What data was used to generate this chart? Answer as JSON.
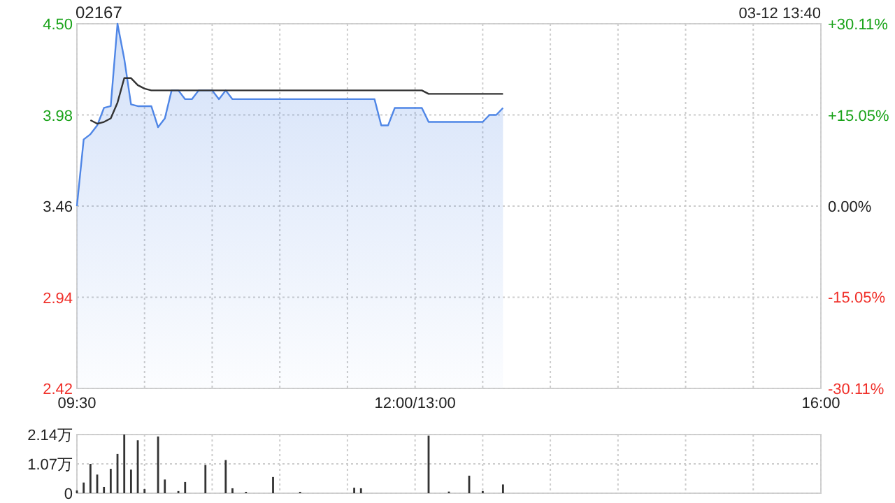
{
  "chart_data": [
    {
      "type": "line",
      "title": "02167",
      "annotations": [
        "03-12 13:40"
      ],
      "categories": [
        "09:30",
        null,
        null,
        null,
        null,
        null,
        null,
        null,
        null,
        null,
        null,
        null,
        null,
        null,
        null,
        null,
        null,
        null,
        null,
        null,
        null,
        null,
        null,
        null,
        null,
        null,
        null,
        null,
        null,
        null,
        null,
        null,
        null,
        null,
        null,
        null,
        null,
        null,
        null,
        null,
        null,
        null,
        null,
        null,
        null,
        null,
        null,
        null,
        null,
        null,
        "12:00/13:00",
        null,
        null,
        null,
        null,
        null,
        null,
        null,
        null,
        null,
        null,
        null,
        null,
        null,
        null,
        null,
        null,
        null,
        null,
        null,
        null,
        null,
        null,
        null,
        null,
        null,
        null,
        null,
        null,
        null,
        null,
        null,
        null,
        null,
        null,
        null,
        null,
        null,
        null,
        null,
        null,
        null,
        null,
        null,
        null,
        null,
        null,
        null,
        null,
        null,
        null,
        null,
        null,
        null,
        null,
        null,
        null,
        null,
        null,
        null,
        "16:00"
      ],
      "ylim": [
        2.42,
        4.5
      ],
      "yticks": [
        2.42,
        2.94,
        3.46,
        3.98,
        {
          "value": 4.5,
          "label": "4.50"
        }
      ],
      "y2lim": [
        -30.11,
        30.11
      ],
      "y2ticks": [
        {
          "value": -30.11,
          "label": "-30.11%"
        },
        {
          "value": -15.05,
          "label": "-15.05%"
        },
        {
          "value": 0,
          "label": "0.00%"
        },
        {
          "value": 15.05,
          "label": "+15.05%"
        },
        {
          "value": 30.11,
          "label": "+30.11%"
        }
      ],
      "grid": true,
      "series": [
        {
          "type": "area",
          "color": "#4f86e6",
          "values": [
            3.46,
            3.84,
            3.87,
            3.92,
            4.02,
            4.03,
            4.5,
            4.3,
            4.04,
            4.03,
            4.03,
            4.03,
            3.91,
            3.96,
            4.12,
            4.12,
            4.07,
            4.07,
            4.12,
            4.12,
            4.12,
            4.07,
            4.12,
            4.07,
            4.07,
            4.07,
            4.07,
            4.07,
            4.07,
            4.07,
            4.07,
            4.07,
            4.07,
            4.07,
            4.07,
            4.07,
            4.07,
            4.07,
            4.07,
            4.07,
            4.07,
            4.07,
            4.07,
            4.07,
            4.07,
            3.92,
            3.92,
            4.02,
            4.02,
            4.02,
            4.02,
            4.02,
            3.94,
            3.94,
            3.94,
            3.94,
            3.94,
            3.94,
            3.94,
            3.94,
            3.94,
            3.98,
            3.98,
            4.02,
            null,
            null,
            null,
            null,
            null,
            null,
            null,
            null,
            null,
            null,
            null,
            null,
            null,
            null,
            null,
            null,
            null,
            null,
            null,
            null,
            null,
            null,
            null,
            null,
            null,
            null,
            null,
            null,
            null,
            null,
            null,
            null,
            null,
            null,
            null,
            null,
            null,
            null,
            null,
            null,
            null,
            null,
            null,
            null,
            null,
            null,
            null
          ]
        },
        {
          "type": "line",
          "color": "#333333",
          "values": [
            null,
            null,
            3.95,
            3.93,
            3.94,
            3.96,
            4.05,
            4.19,
            4.19,
            4.15,
            4.13,
            4.12,
            4.12,
            4.12,
            4.12,
            4.12,
            4.12,
            4.12,
            4.12,
            4.12,
            4.12,
            4.12,
            4.12,
            4.12,
            4.12,
            4.12,
            4.12,
            4.12,
            4.12,
            4.12,
            4.12,
            4.12,
            4.12,
            4.12,
            4.12,
            4.12,
            4.12,
            4.12,
            4.12,
            4.12,
            4.12,
            4.12,
            4.12,
            4.12,
            4.12,
            4.12,
            4.12,
            4.12,
            4.12,
            4.12,
            4.12,
            4.12,
            4.1,
            4.1,
            4.1,
            4.1,
            4.1,
            4.1,
            4.1,
            4.1,
            4.1,
            4.1,
            4.1,
            4.1,
            null,
            null,
            null,
            null,
            null,
            null,
            null,
            null,
            null,
            null,
            null,
            null,
            null,
            null,
            null,
            null,
            null,
            null,
            null,
            null,
            null,
            null,
            null,
            null,
            null,
            null,
            null,
            null,
            null,
            null,
            null,
            null,
            null,
            null,
            null,
            null,
            null,
            null,
            null,
            null,
            null,
            null,
            null,
            null,
            null,
            null,
            null
          ]
        }
      ]
    },
    {
      "type": "bar",
      "categories": [
        null,
        null,
        null,
        null,
        null,
        null,
        null,
        null,
        null,
        null,
        null,
        null,
        null,
        null,
        null,
        null,
        null,
        null,
        null,
        null,
        null,
        null,
        null,
        null,
        null,
        null,
        null,
        null,
        null,
        null,
        null,
        null,
        null,
        null,
        null,
        null,
        null,
        null,
        null,
        null,
        null,
        null,
        null,
        null,
        null,
        null,
        null,
        null,
        null,
        null,
        null,
        null,
        null,
        null,
        null,
        null,
        null,
        null,
        null,
        null,
        null,
        null,
        null,
        null,
        null,
        null,
        null,
        null,
        null,
        null,
        null,
        null,
        null,
        null,
        null,
        null,
        null,
        null,
        null,
        null,
        null,
        null,
        null,
        null,
        null,
        null,
        null,
        null,
        null,
        null,
        null,
        null,
        null,
        null,
        null,
        null,
        null,
        null,
        null,
        null,
        null,
        null,
        null,
        null,
        null,
        null,
        null,
        null,
        null,
        null,
        null
      ],
      "ylim": [
        0,
        2.14
      ],
      "yticks": [
        {
          "value": 0,
          "label": "0"
        },
        {
          "value": 1.07,
          "label": "1.07万"
        },
        {
          "value": 2.14,
          "label": "2.14万"
        }
      ],
      "tick_labels": "y",
      "grid": true,
      "series": [
        {
          "color": "#333333",
          "values": [
            0.1,
            0.39,
            1.07,
            0.68,
            0.23,
            0.89,
            1.43,
            2.14,
            0.86,
            1.93,
            0.15,
            null,
            2.07,
            0.5,
            null,
            0.08,
            0.41,
            null,
            null,
            1.03,
            null,
            null,
            1.21,
            0.18,
            null,
            0.05,
            null,
            null,
            null,
            0.59,
            null,
            null,
            null,
            0.05,
            null,
            null,
            null,
            null,
            null,
            null,
            null,
            0.2,
            0.18,
            null,
            null,
            null,
            null,
            null,
            null,
            null,
            null,
            null,
            2.1,
            null,
            null,
            0.06,
            null,
            null,
            0.64,
            null,
            0.08,
            null,
            null,
            0.32,
            null,
            null,
            null,
            null,
            null,
            null,
            null,
            null,
            null,
            null,
            null,
            null,
            null,
            null,
            null,
            null,
            null,
            null,
            null,
            null,
            null,
            null,
            null,
            null,
            null,
            null,
            null,
            null,
            null,
            null,
            null,
            null,
            null,
            null,
            null,
            null,
            null,
            null,
            null,
            null,
            null,
            null,
            null,
            null,
            null,
            null,
            null
          ]
        }
      ]
    }
  ]
}
